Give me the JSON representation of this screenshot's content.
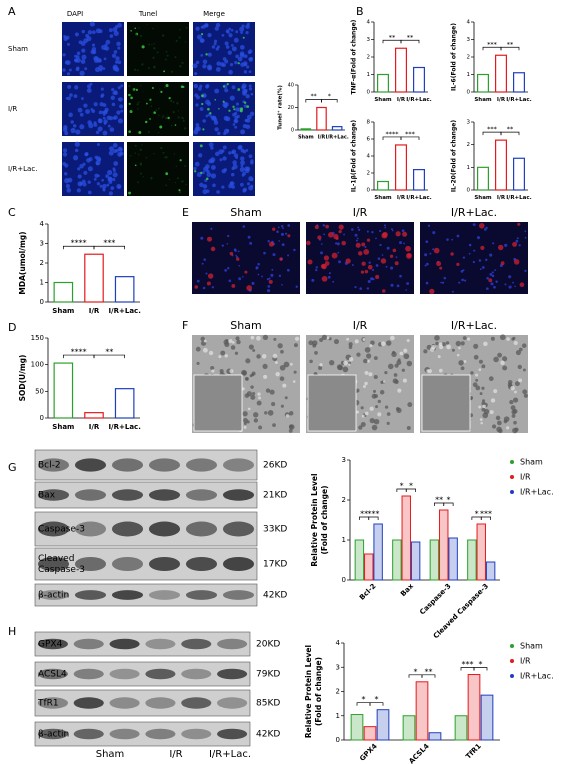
{
  "panel_labels": [
    "A",
    "B",
    "C",
    "D",
    "E",
    "F",
    "G",
    "H"
  ],
  "panel_a": {
    "columns": [
      "DAPI",
      "Tunel",
      "Merge"
    ],
    "rows": [
      "Sham",
      "I/R",
      "I/R+Lac."
    ]
  },
  "panel_e": {
    "columns": [
      "Sham",
      "I/R",
      "I/R+Lac."
    ]
  },
  "panel_f": {
    "columns": [
      "Sham",
      "I/R",
      "I/R+Lac."
    ]
  },
  "panel_g": {
    "bands": [
      {
        "lines": [
          "Bcl-2"
        ],
        "size": "26KD"
      },
      {
        "lines": [
          "Bax"
        ],
        "size": "21KD"
      },
      {
        "lines": [
          "Caspase-3"
        ],
        "size": "33KD"
      },
      {
        "lines": [
          "Cleaved",
          "Caspase-3"
        ],
        "size": "17KD"
      },
      {
        "lines": [
          "β-actin"
        ],
        "size": "42KD"
      }
    ]
  },
  "panel_h": {
    "bands": [
      {
        "lines": [
          "GPX4"
        ],
        "size": "20KD"
      },
      {
        "lines": [
          "ACSL4"
        ],
        "size": "79KD"
      },
      {
        "lines": [
          "TfR1"
        ],
        "size": "85KD"
      },
      {
        "lines": [
          "β-actin"
        ],
        "size": "42KD"
      }
    ],
    "lanes": [
      "Sham",
      "I/R",
      "I/R+Lac."
    ]
  },
  "chart_data": [
    {
      "type": "bar",
      "y_label": "Tunel⁺ rate(%)",
      "categories": [
        "Sham",
        "I/R",
        "I/R+Lac."
      ],
      "values": [
        1,
        20,
        3
      ],
      "colors": [
        "#2ca02c",
        "#e41a1c",
        "#1f3fbf"
      ],
      "ylim": [
        0,
        40
      ],
      "yticks": [
        0,
        20,
        40
      ],
      "significance": [
        "**",
        "*"
      ]
    },
    {
      "type": "bar",
      "y_label": "TNF-α(Fold of change)",
      "categories": [
        "Sham",
        "I/R",
        "I/R+Lac."
      ],
      "values": [
        1,
        2.5,
        1.4
      ],
      "colors": [
        "#2ca02c",
        "#e41a1c",
        "#1f3fbf"
      ],
      "ylim": [
        0,
        4
      ],
      "yticks": [
        0,
        1,
        2,
        3,
        4
      ],
      "significance": [
        "**",
        "**"
      ]
    },
    {
      "type": "bar",
      "y_label": "IL-6(Fold of change)",
      "categories": [
        "Sham",
        "I/R",
        "I/R+Lac."
      ],
      "values": [
        1,
        2.1,
        1.1
      ],
      "colors": [
        "#2ca02c",
        "#e41a1c",
        "#1f3fbf"
      ],
      "ylim": [
        0,
        4
      ],
      "yticks": [
        0,
        1,
        2,
        3,
        4
      ],
      "significance": [
        "***",
        "**"
      ]
    },
    {
      "type": "bar",
      "y_label": "IL-1β(Fold of change)",
      "categories": [
        "Sham",
        "I/R",
        "I/R+Lac."
      ],
      "values": [
        1,
        5.3,
        2.4
      ],
      "colors": [
        "#2ca02c",
        "#e41a1c",
        "#1f3fbf"
      ],
      "ylim": [
        0,
        8
      ],
      "yticks": [
        0,
        2,
        4,
        6,
        8
      ],
      "significance": [
        "****",
        "***"
      ]
    },
    {
      "type": "bar",
      "y_label": "IL-20(Fold of change)",
      "categories": [
        "Sham",
        "I/R",
        "I/R+Lac."
      ],
      "values": [
        1,
        2.2,
        1.4
      ],
      "colors": [
        "#2ca02c",
        "#e41a1c",
        "#1f3fbf"
      ],
      "ylim": [
        0,
        3
      ],
      "yticks": [
        0,
        1,
        2,
        3
      ],
      "significance": [
        "***",
        "**"
      ]
    },
    {
      "type": "bar",
      "y_label": "MDA(umol/mg)",
      "categories": [
        "Sham",
        "I/R",
        "I/R+Lac."
      ],
      "values": [
        1.0,
        2.45,
        1.3
      ],
      "colors": [
        "#2ca02c",
        "#e41a1c",
        "#1f3fbf"
      ],
      "ylim": [
        0,
        4
      ],
      "yticks": [
        0,
        1,
        2,
        3,
        4
      ],
      "significance": [
        "****",
        "***"
      ]
    },
    {
      "type": "bar",
      "y_label": "SOD(U/mg)",
      "categories": [
        "Sham",
        "I/R",
        "I/R+Lac."
      ],
      "values": [
        103,
        10,
        55
      ],
      "colors": [
        "#2ca02c",
        "#e41a1c",
        "#1f3fbf"
      ],
      "ylim": [
        0,
        150
      ],
      "yticks": [
        0,
        50,
        100,
        150
      ],
      "significance": [
        "****",
        "**"
      ]
    },
    {
      "type": "grouped-bar",
      "y_label": [
        "Relative Protein Level",
        "(Fold of change)"
      ],
      "categories": [
        "Bcl-2",
        "Bax",
        "Caspase-3",
        "Cleaved Caspase-3"
      ],
      "series": [
        {
          "name": "Sham",
          "color": "#2ca02c",
          "values": [
            1,
            1,
            1,
            1
          ]
        },
        {
          "name": "I/R",
          "color": "#e41a1c",
          "values": [
            0.65,
            2.1,
            1.75,
            1.4
          ]
        },
        {
          "name": "I/R+Lac.",
          "color": "#1f3fbf",
          "values": [
            1.4,
            0.95,
            1.05,
            0.45
          ]
        }
      ],
      "ylim": [
        0,
        3
      ],
      "yticks": [
        0,
        1,
        2,
        3
      ],
      "significance": [
        [
          "**",
          "***"
        ],
        [
          "*",
          "*"
        ],
        [
          "**",
          "*"
        ],
        [
          "*",
          "***"
        ]
      ]
    },
    {
      "type": "grouped-bar",
      "y_label": [
        "Relative Protein Level",
        "(Fold of change)"
      ],
      "categories": [
        "GPX4",
        "ACSL4",
        "TfR1"
      ],
      "series": [
        {
          "name": "Sham",
          "color": "#2ca02c",
          "values": [
            1.05,
            1.0,
            1.0
          ]
        },
        {
          "name": "I/R",
          "color": "#e41a1c",
          "values": [
            0.55,
            2.4,
            2.7
          ]
        },
        {
          "name": "I/R+Lac.",
          "color": "#1f3fbf",
          "values": [
            1.25,
            0.3,
            1.85
          ]
        }
      ],
      "ylim": [
        0,
        4
      ],
      "yticks": [
        0,
        1,
        2,
        3,
        4
      ],
      "significance": [
        [
          "*",
          "*"
        ],
        [
          "*",
          "**"
        ],
        [
          "***",
          "*"
        ]
      ]
    }
  ]
}
